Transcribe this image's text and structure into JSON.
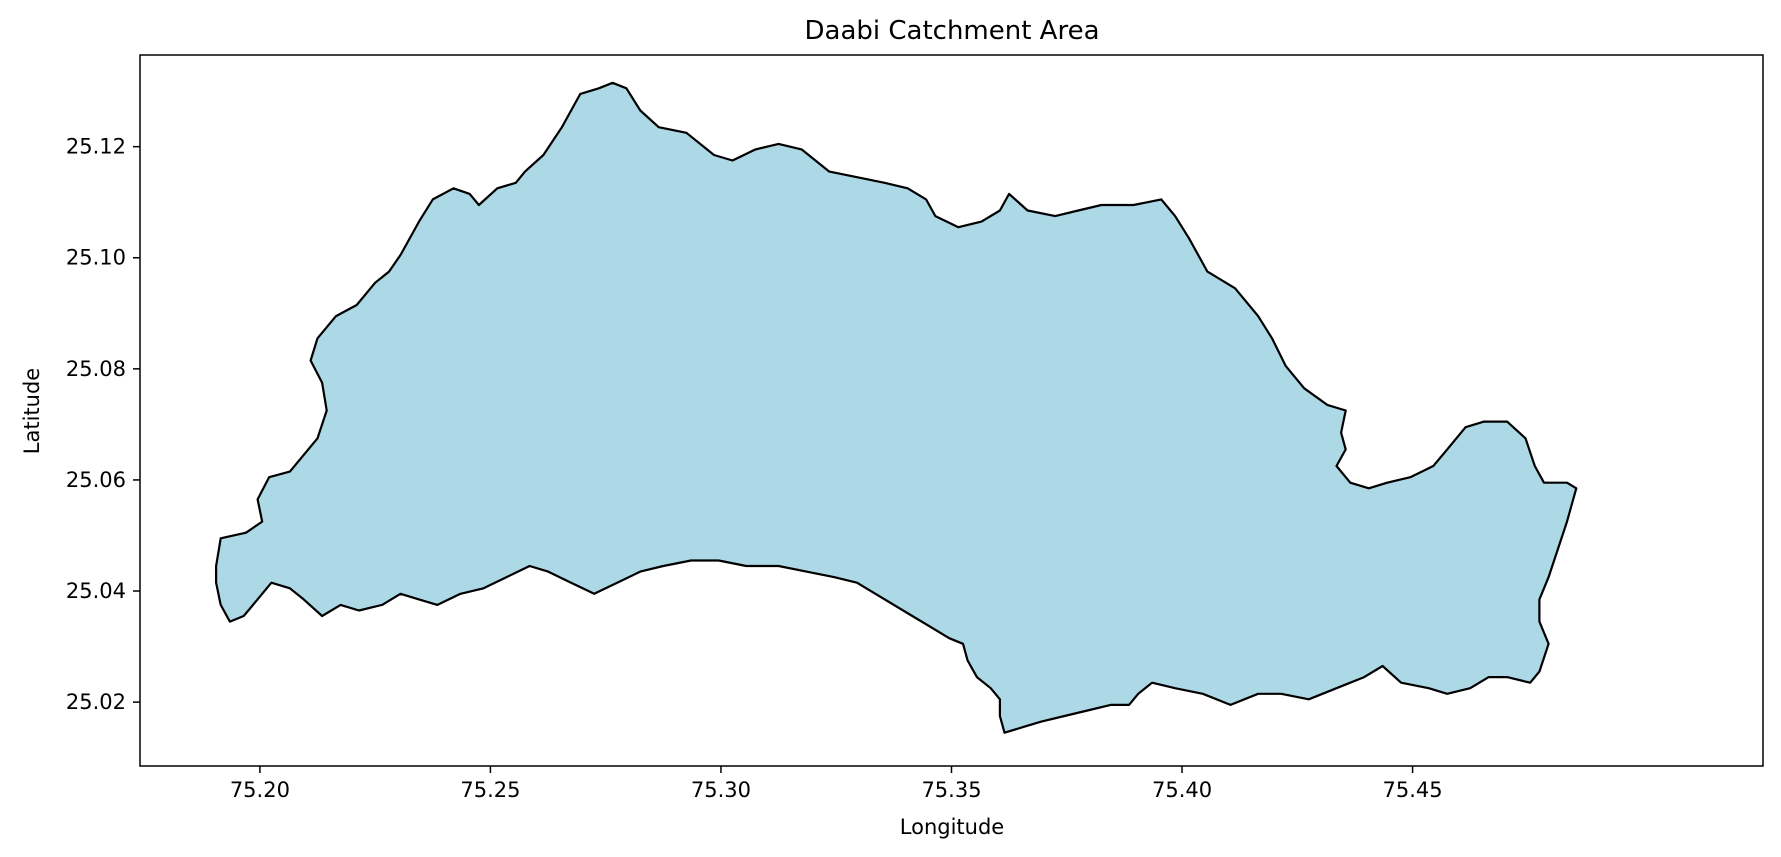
{
  "chart_data": {
    "type": "map",
    "title": "Daabi Catchment Area",
    "xlabel": "Longitude",
    "ylabel": "Latitude",
    "xlim": [
      75.174,
      75.526
    ],
    "ylim": [
      25.0085,
      25.1365
    ],
    "x_ticks": [
      75.2,
      75.25,
      75.3,
      75.35,
      75.4,
      75.45
    ],
    "x_tick_labels": [
      "75.20",
      "75.25",
      "75.30",
      "75.35",
      "75.40",
      "75.45"
    ],
    "y_ticks": [
      25.02,
      25.04,
      25.06,
      25.08,
      25.1,
      25.12
    ],
    "y_tick_labels": [
      "25.02",
      "25.04",
      "25.06",
      "25.08",
      "25.10",
      "25.12"
    ],
    "grid": false,
    "fill_color": "#add8e6",
    "edge_color": "#000000",
    "polygon": [
      [
        75.1905,
        25.0445
      ],
      [
        75.1915,
        25.0495
      ],
      [
        75.197,
        25.0505
      ],
      [
        75.2005,
        25.0525
      ],
      [
        75.1995,
        25.0565
      ],
      [
        75.202,
        25.0605
      ],
      [
        75.2065,
        25.0615
      ],
      [
        75.2125,
        25.0675
      ],
      [
        75.2145,
        25.0725
      ],
      [
        75.2135,
        25.0775
      ],
      [
        75.211,
        25.0815
      ],
      [
        75.2125,
        25.0855
      ],
      [
        75.2165,
        25.0895
      ],
      [
        75.221,
        25.0915
      ],
      [
        75.225,
        25.0955
      ],
      [
        75.228,
        25.0975
      ],
      [
        75.2305,
        25.1005
      ],
      [
        75.2345,
        25.1065
      ],
      [
        75.2375,
        25.1105
      ],
      [
        75.242,
        25.1125
      ],
      [
        75.2455,
        25.1115
      ],
      [
        75.2475,
        25.1095
      ],
      [
        75.2515,
        25.1125
      ],
      [
        75.2555,
        25.1135
      ],
      [
        75.2575,
        25.1155
      ],
      [
        75.2615,
        25.1185
      ],
      [
        75.2655,
        25.1235
      ],
      [
        75.2675,
        25.1265
      ],
      [
        75.2695,
        25.1295
      ],
      [
        75.2735,
        25.1305
      ],
      [
        75.2765,
        25.1315
      ],
      [
        75.2795,
        25.1305
      ],
      [
        75.2825,
        25.1265
      ],
      [
        75.2865,
        25.1235
      ],
      [
        75.2925,
        25.1225
      ],
      [
        75.2985,
        25.1185
      ],
      [
        75.3025,
        25.1175
      ],
      [
        75.3075,
        25.1195
      ],
      [
        75.3125,
        25.1205
      ],
      [
        75.3175,
        25.1195
      ],
      [
        75.3235,
        25.1155
      ],
      [
        75.3295,
        25.1145
      ],
      [
        75.3355,
        25.1135
      ],
      [
        75.3405,
        25.1125
      ],
      [
        75.3445,
        25.1105
      ],
      [
        75.3465,
        25.1075
      ],
      [
        75.3515,
        25.1055
      ],
      [
        75.3565,
        25.1065
      ],
      [
        75.3605,
        25.1085
      ],
      [
        75.3625,
        25.1115
      ],
      [
        75.3665,
        25.1085
      ],
      [
        75.3725,
        25.1075
      ],
      [
        75.3775,
        25.1085
      ],
      [
        75.3825,
        25.1095
      ],
      [
        75.3895,
        25.1095
      ],
      [
        75.3955,
        25.1105
      ],
      [
        75.3985,
        25.1075
      ],
      [
        75.4015,
        25.1035
      ],
      [
        75.4055,
        25.0975
      ],
      [
        75.4115,
        25.0945
      ],
      [
        75.4165,
        25.0895
      ],
      [
        75.4195,
        25.0855
      ],
      [
        75.4225,
        25.0805
      ],
      [
        75.4265,
        25.0765
      ],
      [
        75.4315,
        25.0735
      ],
      [
        75.4355,
        25.0725
      ],
      [
        75.4345,
        25.0685
      ],
      [
        75.4355,
        25.0655
      ],
      [
        75.4335,
        25.0625
      ],
      [
        75.4365,
        25.0595
      ],
      [
        75.4405,
        25.0585
      ],
      [
        75.4445,
        25.0595
      ],
      [
        75.4495,
        25.0605
      ],
      [
        75.4545,
        25.0625
      ],
      [
        75.4575,
        25.0655
      ],
      [
        75.4615,
        25.0695
      ],
      [
        75.4655,
        25.0705
      ],
      [
        75.4705,
        25.0705
      ],
      [
        75.4745,
        25.0675
      ],
      [
        75.4765,
        25.0625
      ],
      [
        75.4785,
        25.0595
      ],
      [
        75.4835,
        25.0595
      ],
      [
        75.4855,
        25.0585
      ],
      [
        75.4835,
        25.0525
      ],
      [
        75.4815,
        25.0475
      ],
      [
        75.4795,
        25.0425
      ],
      [
        75.4775,
        25.0385
      ],
      [
        75.4775,
        25.0345
      ],
      [
        75.4795,
        25.0305
      ],
      [
        75.4775,
        25.0255
      ],
      [
        75.4755,
        25.0235
      ],
      [
        75.4705,
        25.0245
      ],
      [
        75.4665,
        25.0245
      ],
      [
        75.4625,
        25.0225
      ],
      [
        75.4575,
        25.0215
      ],
      [
        75.4535,
        25.0225
      ],
      [
        75.4475,
        25.0235
      ],
      [
        75.4435,
        25.0265
      ],
      [
        75.4395,
        25.0245
      ],
      [
        75.4335,
        25.0225
      ],
      [
        75.4275,
        25.0205
      ],
      [
        75.4215,
        25.0215
      ],
      [
        75.4165,
        25.0215
      ],
      [
        75.4105,
        25.0195
      ],
      [
        75.4045,
        25.0215
      ],
      [
        75.3985,
        25.0225
      ],
      [
        75.3935,
        25.0235
      ],
      [
        75.3905,
        25.0215
      ],
      [
        75.3885,
        25.0195
      ],
      [
        75.3845,
        25.0195
      ],
      [
        75.3795,
        25.0185
      ],
      [
        75.3745,
        25.0175
      ],
      [
        75.3695,
        25.0165
      ],
      [
        75.3655,
        25.0155
      ],
      [
        75.3615,
        25.0145
      ],
      [
        75.3605,
        25.0175
      ],
      [
        75.3605,
        25.0205
      ],
      [
        75.3585,
        25.0225
      ],
      [
        75.3555,
        25.0245
      ],
      [
        75.3535,
        25.0275
      ],
      [
        75.3525,
        25.0305
      ],
      [
        75.3495,
        25.0315
      ],
      [
        75.3455,
        25.0335
      ],
      [
        75.3415,
        25.0355
      ],
      [
        75.3375,
        25.0375
      ],
      [
        75.3335,
        25.0395
      ],
      [
        75.3295,
        25.0415
      ],
      [
        75.3245,
        25.0425
      ],
      [
        75.3185,
        25.0435
      ],
      [
        75.3125,
        25.0445
      ],
      [
        75.3055,
        25.0445
      ],
      [
        75.2995,
        25.0455
      ],
      [
        75.2935,
        25.0455
      ],
      [
        75.2875,
        25.0445
      ],
      [
        75.2825,
        25.0435
      ],
      [
        75.2775,
        25.0415
      ],
      [
        75.2725,
        25.0395
      ],
      [
        75.2675,
        25.0415
      ],
      [
        75.2625,
        25.0435
      ],
      [
        75.2585,
        25.0445
      ],
      [
        75.2535,
        25.0425
      ],
      [
        75.2485,
        25.0405
      ],
      [
        75.2435,
        25.0395
      ],
      [
        75.2385,
        25.0375
      ],
      [
        75.2345,
        25.0385
      ],
      [
        75.2305,
        25.0395
      ],
      [
        75.2265,
        25.0375
      ],
      [
        75.2215,
        25.0365
      ],
      [
        75.2175,
        25.0375
      ],
      [
        75.2135,
        25.0355
      ],
      [
        75.2095,
        25.0385
      ],
      [
        75.2065,
        25.0405
      ],
      [
        75.2025,
        25.0415
      ],
      [
        75.2005,
        25.0395
      ],
      [
        75.1985,
        25.0375
      ],
      [
        75.1965,
        25.0355
      ],
      [
        75.1935,
        25.0345
      ],
      [
        75.1915,
        25.0375
      ],
      [
        75.1905,
        25.0415
      ]
    ]
  }
}
